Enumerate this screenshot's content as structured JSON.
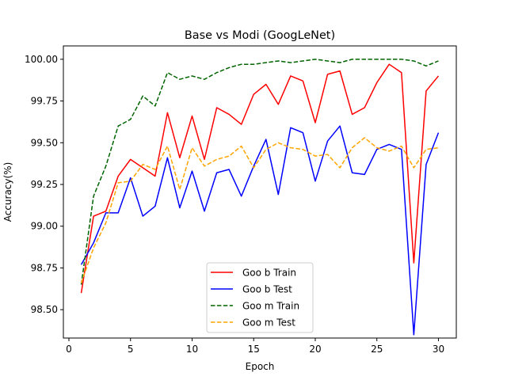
{
  "chart_data": {
    "type": "line",
    "title": "Base vs Modi (GoogLeNet)",
    "xlabel": "Epoch",
    "ylabel": "Accuracy(%)",
    "xlim": [
      -0.45,
      31.45
    ],
    "ylim": [
      98.33,
      100.08
    ],
    "x_ticks": [
      0,
      5,
      10,
      15,
      20,
      25,
      30
    ],
    "y_ticks": [
      98.5,
      98.75,
      99.0,
      99.25,
      99.5,
      99.75,
      100.0
    ],
    "y_tick_labels": [
      "98.50",
      "98.75",
      "99.00",
      "99.25",
      "99.50",
      "99.75",
      "100.00"
    ],
    "grid": false,
    "legend_position": "lower-center",
    "x": [
      1,
      2,
      3,
      4,
      5,
      6,
      7,
      8,
      9,
      10,
      11,
      12,
      13,
      14,
      15,
      16,
      17,
      18,
      19,
      20,
      21,
      22,
      23,
      24,
      25,
      26,
      27,
      28,
      29,
      30
    ],
    "series": [
      {
        "name": "Goo b Train",
        "color": "#ff0000",
        "dash": "solid",
        "values": [
          98.6,
          99.06,
          99.09,
          99.3,
          99.4,
          99.35,
          99.3,
          99.68,
          99.41,
          99.66,
          99.4,
          99.71,
          99.67,
          99.61,
          99.79,
          99.85,
          99.73,
          99.9,
          99.87,
          99.62,
          99.91,
          99.93,
          99.67,
          99.71,
          99.86,
          99.97,
          99.92,
          98.78,
          99.81,
          99.9
        ]
      },
      {
        "name": "Goo b Test",
        "color": "#0000ff",
        "dash": "solid",
        "values": [
          98.77,
          98.9,
          99.08,
          99.08,
          99.29,
          99.06,
          99.12,
          99.41,
          99.11,
          99.33,
          99.09,
          99.32,
          99.34,
          99.18,
          99.36,
          99.52,
          99.19,
          99.59,
          99.56,
          99.27,
          99.51,
          99.6,
          99.32,
          99.31,
          99.46,
          99.49,
          99.46,
          98.35,
          99.37,
          99.56
        ]
      },
      {
        "name": "Goo m Train",
        "color": "#006400",
        "dash": "dashed",
        "values": [
          98.65,
          99.18,
          99.36,
          99.6,
          99.64,
          99.78,
          99.72,
          99.92,
          99.88,
          99.9,
          99.88,
          99.92,
          99.95,
          99.97,
          99.97,
          99.98,
          99.99,
          99.98,
          99.99,
          100.0,
          99.99,
          99.98,
          100.0,
          100.0,
          100.0,
          100.0,
          100.0,
          99.99,
          99.96,
          99.99
        ]
      },
      {
        "name": "Goo m Test",
        "color": "#ffa500",
        "dash": "dashed",
        "values": [
          98.66,
          98.87,
          99.02,
          99.26,
          99.27,
          99.37,
          99.34,
          99.48,
          99.22,
          99.47,
          99.36,
          99.4,
          99.42,
          99.48,
          99.35,
          99.46,
          99.5,
          99.47,
          99.46,
          99.42,
          99.43,
          99.35,
          99.47,
          99.53,
          99.47,
          99.45,
          99.48,
          99.35,
          99.46,
          99.47
        ]
      }
    ]
  }
}
